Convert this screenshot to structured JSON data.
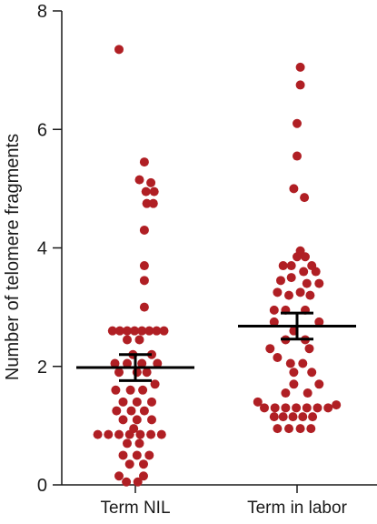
{
  "chart_data": {
    "type": "scatter",
    "title": "",
    "xlabel": "",
    "ylabel": "Number of telomere fragments",
    "ylim": [
      0,
      8
    ],
    "yticks": [
      0,
      2,
      4,
      6,
      8
    ],
    "categories": [
      "Term NIL",
      "Term in labor"
    ],
    "point_color": "#b01f24",
    "summary_color": "#000000",
    "series": [
      {
        "category": "Term NIL",
        "mean": 1.98,
        "sem": [
          1.76,
          2.2
        ],
        "points": [
          {
            "x": -0.2,
            "y": 7.35
          },
          {
            "x": 0.11,
            "y": 5.45
          },
          {
            "x": 0.05,
            "y": 5.15
          },
          {
            "x": 0.19,
            "y": 5.1
          },
          {
            "x": 0.13,
            "y": 4.95
          },
          {
            "x": 0.23,
            "y": 4.95
          },
          {
            "x": 0.14,
            "y": 4.75
          },
          {
            "x": 0.22,
            "y": 4.75
          },
          {
            "x": 0.11,
            "y": 4.3
          },
          {
            "x": 0.11,
            "y": 3.7
          },
          {
            "x": 0.11,
            "y": 3.45
          },
          {
            "x": 0.11,
            "y": 3.0
          },
          {
            "x": -0.28,
            "y": 2.6
          },
          {
            "x": -0.19,
            "y": 2.6
          },
          {
            "x": -0.1,
            "y": 2.6
          },
          {
            "x": -0.01,
            "y": 2.6
          },
          {
            "x": 0.08,
            "y": 2.6
          },
          {
            "x": 0.17,
            "y": 2.6
          },
          {
            "x": 0.26,
            "y": 2.6
          },
          {
            "x": 0.35,
            "y": 2.6
          },
          {
            "x": -0.1,
            "y": 2.45
          },
          {
            "x": 0.05,
            "y": 2.45
          },
          {
            "x": -0.03,
            "y": 2.2
          },
          {
            "x": 0.2,
            "y": 2.2
          },
          {
            "x": -0.25,
            "y": 2.05
          },
          {
            "x": -0.1,
            "y": 2.05
          },
          {
            "x": 0.08,
            "y": 2.05
          },
          {
            "x": 0.27,
            "y": 2.05
          },
          {
            "x": -0.2,
            "y": 1.9
          },
          {
            "x": 0.02,
            "y": 1.9
          },
          {
            "x": 0.14,
            "y": 1.9
          },
          {
            "x": 0.24,
            "y": 1.7
          },
          {
            "x": -0.24,
            "y": 1.6
          },
          {
            "x": -0.06,
            "y": 1.6
          },
          {
            "x": 0.09,
            "y": 1.6
          },
          {
            "x": -0.15,
            "y": 1.4
          },
          {
            "x": 0.02,
            "y": 1.4
          },
          {
            "x": 0.2,
            "y": 1.4
          },
          {
            "x": -0.23,
            "y": 1.25
          },
          {
            "x": -0.05,
            "y": 1.25
          },
          {
            "x": 0.11,
            "y": 1.25
          },
          {
            "x": -0.15,
            "y": 1.1
          },
          {
            "x": 0.02,
            "y": 1.1
          },
          {
            "x": 0.2,
            "y": 1.1
          },
          {
            "x": -0.02,
            "y": 0.95
          },
          {
            "x": -0.46,
            "y": 0.85
          },
          {
            "x": -0.33,
            "y": 0.85
          },
          {
            "x": -0.2,
            "y": 0.85
          },
          {
            "x": -0.07,
            "y": 0.85
          },
          {
            "x": 0.06,
            "y": 0.85
          },
          {
            "x": 0.19,
            "y": 0.85
          },
          {
            "x": 0.32,
            "y": 0.85
          },
          {
            "x": -0.1,
            "y": 0.7
          },
          {
            "x": 0.05,
            "y": 0.7
          },
          {
            "x": -0.15,
            "y": 0.5
          },
          {
            "x": 0.02,
            "y": 0.5
          },
          {
            "x": 0.17,
            "y": 0.5
          },
          {
            "x": -0.07,
            "y": 0.35
          },
          {
            "x": 0.1,
            "y": 0.35
          },
          {
            "x": -0.2,
            "y": 0.15
          },
          {
            "x": 0.1,
            "y": 0.15
          },
          {
            "x": -0.11,
            "y": 0.05
          },
          {
            "x": 0.03,
            "y": 0.05
          }
        ]
      },
      {
        "category": "Term in labor",
        "mean": 2.68,
        "sem": [
          2.46,
          2.9
        ],
        "points": [
          {
            "x": 0.04,
            "y": 7.05
          },
          {
            "x": 0.04,
            "y": 6.75
          },
          {
            "x": 0.0,
            "y": 6.1
          },
          {
            "x": 0.0,
            "y": 5.55
          },
          {
            "x": -0.04,
            "y": 5.0
          },
          {
            "x": 0.09,
            "y": 4.85
          },
          {
            "x": 0.04,
            "y": 3.95
          },
          {
            "x": 0.0,
            "y": 3.85
          },
          {
            "x": 0.1,
            "y": 3.85
          },
          {
            "x": -0.17,
            "y": 3.7
          },
          {
            "x": -0.07,
            "y": 3.7
          },
          {
            "x": 0.18,
            "y": 3.7
          },
          {
            "x": 0.08,
            "y": 3.6
          },
          {
            "x": 0.23,
            "y": 3.6
          },
          {
            "x": -0.07,
            "y": 3.5
          },
          {
            "x": -0.2,
            "y": 3.45
          },
          {
            "x": 0.12,
            "y": 3.4
          },
          {
            "x": 0.27,
            "y": 3.4
          },
          {
            "x": -0.24,
            "y": 3.25
          },
          {
            "x": -0.1,
            "y": 3.2
          },
          {
            "x": 0.04,
            "y": 3.25
          },
          {
            "x": 0.16,
            "y": 3.2
          },
          {
            "x": -0.28,
            "y": 2.95
          },
          {
            "x": -0.14,
            "y": 2.95
          },
          {
            "x": 0.1,
            "y": 2.95
          },
          {
            "x": -0.28,
            "y": 2.75
          },
          {
            "x": 0.27,
            "y": 2.75
          },
          {
            "x": -0.04,
            "y": 2.6
          },
          {
            "x": -0.14,
            "y": 2.45
          },
          {
            "x": 0.1,
            "y": 2.45
          },
          {
            "x": -0.33,
            "y": 2.3
          },
          {
            "x": 0.15,
            "y": 2.3
          },
          {
            "x": -0.24,
            "y": 2.15
          },
          {
            "x": -0.08,
            "y": 2.05
          },
          {
            "x": 0.07,
            "y": 2.05
          },
          {
            "x": -0.04,
            "y": 1.9
          },
          {
            "x": 0.18,
            "y": 1.9
          },
          {
            "x": -0.04,
            "y": 1.7
          },
          {
            "x": 0.27,
            "y": 1.7
          },
          {
            "x": -0.14,
            "y": 1.55
          },
          {
            "x": 0.13,
            "y": 1.55
          },
          {
            "x": -0.48,
            "y": 1.4
          },
          {
            "x": -0.4,
            "y": 1.3
          },
          {
            "x": -0.27,
            "y": 1.3
          },
          {
            "x": -0.14,
            "y": 1.3
          },
          {
            "x": -0.01,
            "y": 1.3
          },
          {
            "x": 0.12,
            "y": 1.3
          },
          {
            "x": 0.25,
            "y": 1.3
          },
          {
            "x": 0.38,
            "y": 1.3
          },
          {
            "x": 0.48,
            "y": 1.35
          },
          {
            "x": -0.28,
            "y": 1.15
          },
          {
            "x": -0.17,
            "y": 1.15
          },
          {
            "x": -0.05,
            "y": 1.15
          },
          {
            "x": 0.07,
            "y": 1.15
          },
          {
            "x": 0.19,
            "y": 1.15
          },
          {
            "x": -0.24,
            "y": 0.95
          },
          {
            "x": -0.1,
            "y": 0.95
          },
          {
            "x": 0.04,
            "y": 0.95
          },
          {
            "x": 0.17,
            "y": 0.95
          }
        ]
      }
    ]
  }
}
